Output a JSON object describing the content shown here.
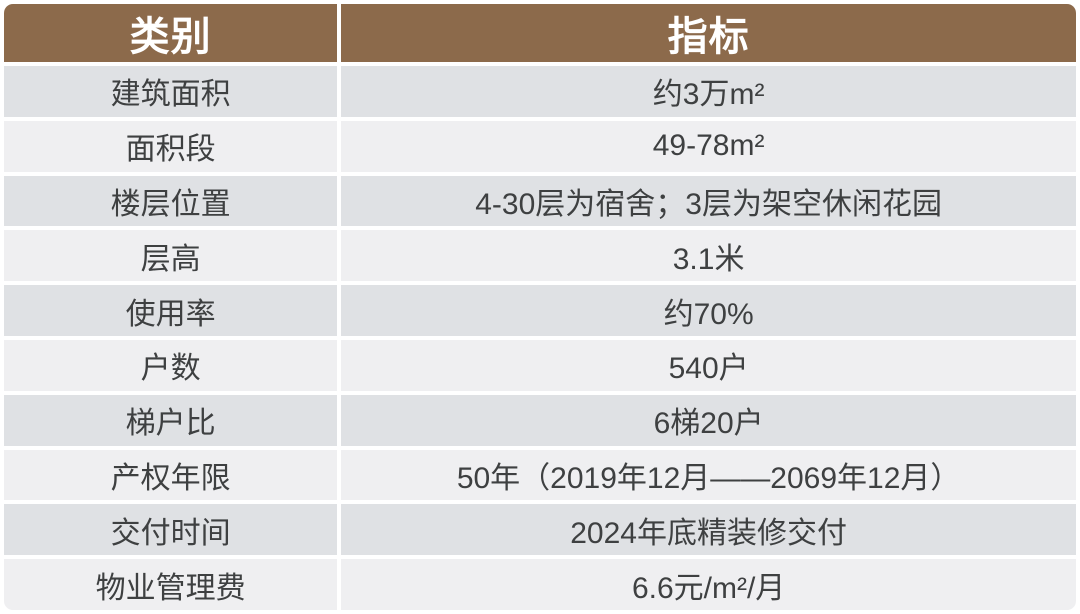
{
  "chart_data": {
    "type": "table",
    "columns": [
      "类别",
      "指标"
    ],
    "rows": [
      [
        "建筑面积",
        "约3万m²"
      ],
      [
        "面积段",
        "49-78m²"
      ],
      [
        "楼层位置",
        "4-30层为宿舍；3层为架空休闲花园"
      ],
      [
        "层高",
        "3.1米"
      ],
      [
        "使用率",
        "约70%"
      ],
      [
        "户数",
        "540户"
      ],
      [
        "梯户比",
        "6梯20户"
      ],
      [
        "产权年限",
        "50年（2019年12月——2069年12月）"
      ],
      [
        "交付时间",
        "2024年底精装修交付"
      ],
      [
        "物业管理费",
        "6.6元/m²/月"
      ]
    ],
    "layout": {
      "banded_rows": true,
      "header_position": "top",
      "column_width_ratio": [
        0.31,
        0.69
      ]
    }
  },
  "colors": {
    "header_bg": "#8C6A4B",
    "header_text": "#FFFFFF",
    "row_band_dark": "#DFE1E4",
    "row_band_light": "#EFEFF1",
    "body_text": "#3E4041",
    "gutter": "#FFFFFF"
  }
}
